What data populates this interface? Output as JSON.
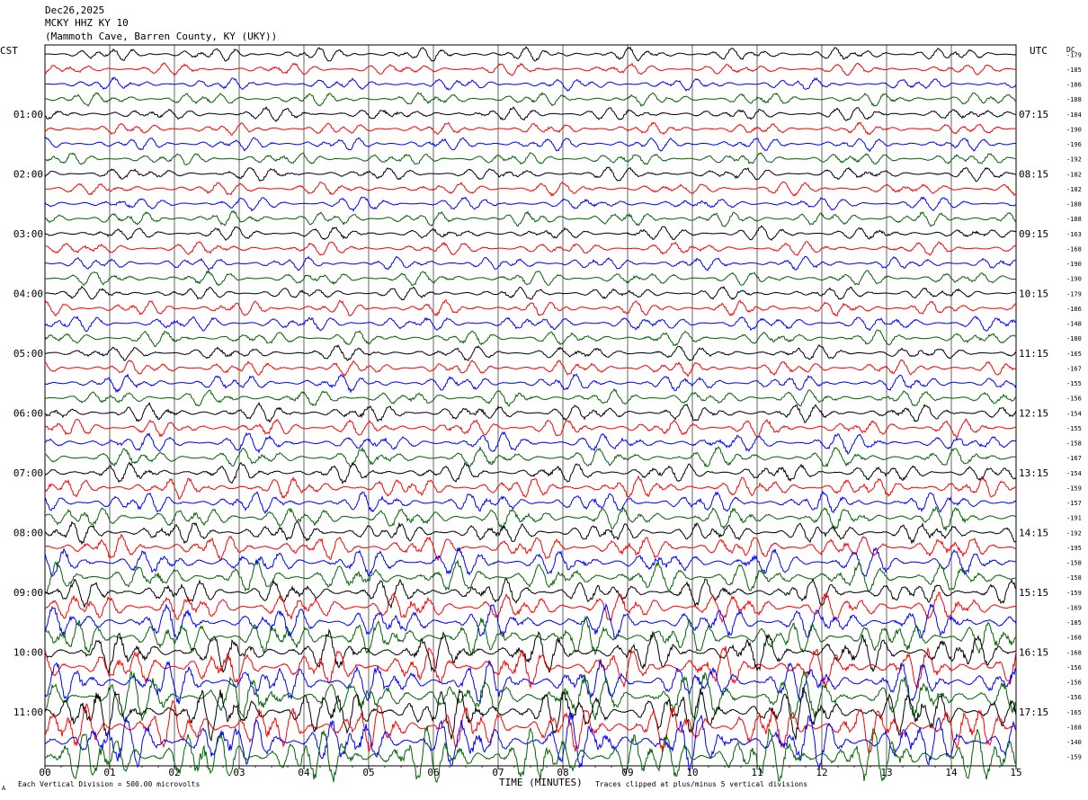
{
  "header": {
    "date": "Dec26,2025",
    "station": "MCKY HHZ KY 10",
    "location": "(Mammoth Cave, Barren County, KY (UKY))"
  },
  "left_zone_label": "CST",
  "right_zone_label": "UTC",
  "dc_label": "DC",
  "footer": {
    "scale_note": "Each Vertical Division =  500.00 microvolts",
    "clip_note": "Traces clipped at plus/minus 5 vertical divisions",
    "corner_mark": "A"
  },
  "chart_data": {
    "type": "line",
    "title": "",
    "xlabel": "TIME (MINUTES)",
    "ylabel": "",
    "x_ticks": [
      "00",
      "01",
      "02",
      "03",
      "04",
      "05",
      "06",
      "07",
      "08",
      "09",
      "10",
      "11",
      "12",
      "13",
      "14",
      "15"
    ],
    "xlim": [
      0,
      15
    ],
    "trace_colors": [
      "#000000",
      "#ff0000",
      "#0000ff",
      "#006400"
    ],
    "trace_minutes": 15,
    "left_hour_labels": [
      {
        "row": 4,
        "text": "01:00"
      },
      {
        "row": 8,
        "text": "02:00"
      },
      {
        "row": 12,
        "text": "03:00"
      },
      {
        "row": 16,
        "text": "04:00"
      },
      {
        "row": 20,
        "text": "05:00"
      },
      {
        "row": 24,
        "text": "06:00"
      },
      {
        "row": 28,
        "text": "07:00"
      },
      {
        "row": 32,
        "text": "08:00"
      },
      {
        "row": 36,
        "text": "09:00"
      },
      {
        "row": 40,
        "text": "10:00"
      },
      {
        "row": 44,
        "text": "11:00"
      }
    ],
    "right_hour_labels": [
      {
        "row": 4,
        "text": "07:15"
      },
      {
        "row": 8,
        "text": "08:15"
      },
      {
        "row": 12,
        "text": "09:15"
      },
      {
        "row": 16,
        "text": "10:15"
      },
      {
        "row": 20,
        "text": "11:15"
      },
      {
        "row": 24,
        "text": "12:15"
      },
      {
        "row": 28,
        "text": "13:15"
      },
      {
        "row": 32,
        "text": "14:15"
      },
      {
        "row": 36,
        "text": "15:15"
      },
      {
        "row": 40,
        "text": "16:15"
      },
      {
        "row": 44,
        "text": "17:15"
      }
    ],
    "dc_offsets": [
      "-179",
      "-185",
      "-186",
      "-188",
      "-184",
      "-190",
      "-196",
      "-192",
      "-182",
      "-182",
      "-188",
      "-188",
      "-163",
      "-168",
      "-190",
      "-190",
      "-179",
      "-186",
      "-148",
      "-180",
      "-165",
      "-167",
      "-155",
      "-156",
      "-154",
      "-155",
      "-158",
      "-167",
      "-154",
      "-159",
      "-157",
      "-191",
      "-192",
      "-195",
      "-158",
      "-158",
      "-159",
      "-169",
      "-185",
      "-168",
      "-168",
      "-156",
      "-156",
      "-156",
      "-165",
      "-168",
      "-140",
      "-159"
    ],
    "row_amplitudes": [
      0.45,
      0.4,
      0.4,
      0.45,
      0.45,
      0.4,
      0.45,
      0.45,
      0.45,
      0.45,
      0.45,
      0.5,
      0.45,
      0.45,
      0.45,
      0.5,
      0.45,
      0.5,
      0.55,
      0.5,
      0.5,
      0.5,
      0.55,
      0.55,
      0.6,
      0.6,
      0.65,
      0.65,
      0.65,
      0.7,
      0.7,
      0.75,
      0.75,
      0.85,
      0.9,
      1.0,
      0.9,
      1.0,
      1.1,
      1.2,
      1.3,
      1.3,
      1.4,
      1.6,
      1.7,
      1.6,
      1.8,
      1.9
    ]
  }
}
